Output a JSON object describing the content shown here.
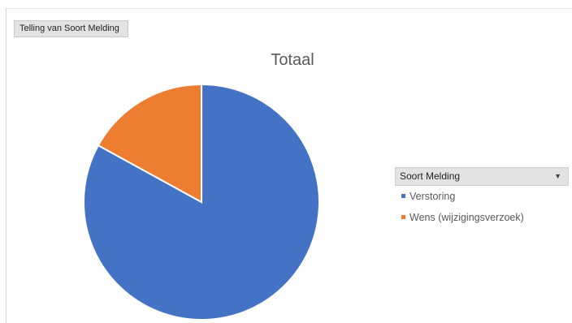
{
  "field_button": {
    "label": "Telling van Soort Melding"
  },
  "chart_data": {
    "type": "pie",
    "title": "Totaal",
    "categories": [
      "Verstoring",
      "Wens (wijzigingsverzoek)"
    ],
    "values": [
      83,
      17
    ],
    "colors": [
      "#4472c4",
      "#ed7d31"
    ],
    "start_angle_deg": 0,
    "direction": "clockwise"
  },
  "legend": {
    "header": "Soort Melding",
    "dropdown_icon": "dropdown-arrow-icon",
    "dropdown_glyph": "▼",
    "items": [
      {
        "label": "Verstoring",
        "color": "#4472c4"
      },
      {
        "label": "Wens (wijzigingsverzoek)",
        "color": "#ed7d31"
      }
    ]
  }
}
